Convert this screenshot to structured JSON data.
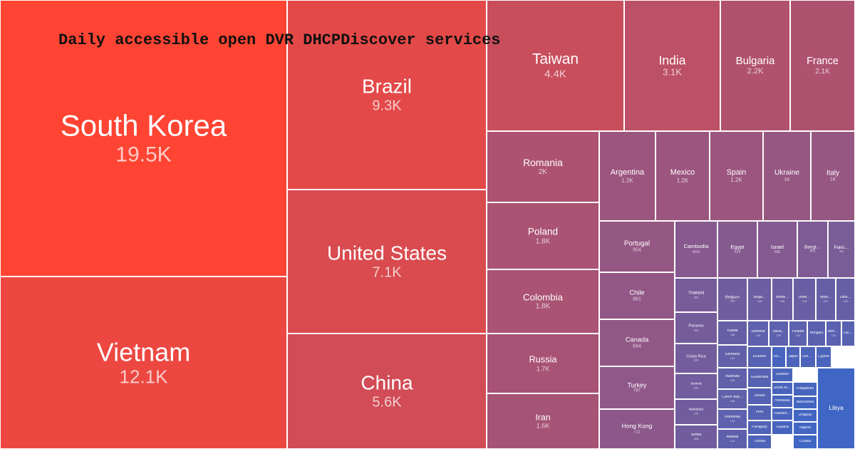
{
  "chart_data": {
    "type": "treemap",
    "title": "Daily accessible open DVR DHCPDiscover services",
    "color_scale": {
      "high": "#ff4433",
      "low": "#3f66c4"
    },
    "items": [
      {
        "name": "South Korea",
        "label": "19.5K",
        "value": 19500
      },
      {
        "name": "Vietnam",
        "label": "12.1K",
        "value": 12100
      },
      {
        "name": "Brazil",
        "label": "9.3K",
        "value": 9300
      },
      {
        "name": "United States",
        "label": "7.1K",
        "value": 7100
      },
      {
        "name": "China",
        "label": "5.6K",
        "value": 5600
      },
      {
        "name": "Taiwan",
        "label": "4.4K",
        "value": 4400
      },
      {
        "name": "India",
        "label": "3.1K",
        "value": 3100
      },
      {
        "name": "Bulgaria",
        "label": "2.2K",
        "value": 2200
      },
      {
        "name": "France",
        "label": "2.1K",
        "value": 2100
      },
      {
        "name": "Romania",
        "label": "2K",
        "value": 2000
      },
      {
        "name": "Poland",
        "label": "1.8K",
        "value": 1800
      },
      {
        "name": "Colombia",
        "label": "1.8K",
        "value": 1800
      },
      {
        "name": "Russia",
        "label": "1.7K",
        "value": 1700
      },
      {
        "name": "Iran",
        "label": "1.6K",
        "value": 1600
      },
      {
        "name": "Argentina",
        "label": "1.2K",
        "value": 1200
      },
      {
        "name": "Mexico",
        "label": "1.2K",
        "value": 1200
      },
      {
        "name": "Spain",
        "label": "1.2K",
        "value": 1200
      },
      {
        "name": "Ukraine",
        "label": "1K",
        "value": 1000
      },
      {
        "name": "Italy",
        "label": "1K",
        "value": 1000
      },
      {
        "name": "Portugal",
        "label": "954",
        "value": 954
      },
      {
        "name": "Chile",
        "label": "861",
        "value": 861
      },
      {
        "name": "Canada",
        "label": "844",
        "value": 844
      },
      {
        "name": "Turkey",
        "label": "787",
        "value": 787
      },
      {
        "name": "Hong Kong",
        "label": "721",
        "value": 721
      },
      {
        "name": "Cambodia",
        "label": "603",
        "value": 603
      },
      {
        "name": "Egypt",
        "label": "578",
        "value": 578
      },
      {
        "name": "Israel",
        "label": "555",
        "value": 555
      },
      {
        "name": "Bangl…",
        "label": "451",
        "value": 451
      },
      {
        "name": "Pakis…",
        "label": "392",
        "value": 392
      },
      {
        "name": "Thailand",
        "label": "363",
        "value": 363
      },
      {
        "name": "Panama",
        "label": "328",
        "value": 328
      },
      {
        "name": "Costa Rica",
        "label": "324",
        "value": 324
      },
      {
        "name": "Bolivia",
        "label": "293",
        "value": 293
      },
      {
        "name": "Malaysia",
        "label": "290",
        "value": 290
      },
      {
        "name": "Serbia",
        "label": "283",
        "value": 283
      },
      {
        "name": "Belgium",
        "label": "280",
        "value": 280
      },
      {
        "name": "Singa…",
        "label": "240",
        "value": 240
      },
      {
        "name": "Nethe…",
        "label": "236",
        "value": 236
      },
      {
        "name": "Unite…",
        "label": "218",
        "value": 218
      },
      {
        "name": "Mold…",
        "label": "201",
        "value": 201
      },
      {
        "name": "Lithu…",
        "label": "196",
        "value": 196
      },
      {
        "name": "Kuwait",
        "label": "196",
        "value": 196
      },
      {
        "name": "Germany",
        "label": "169",
        "value": 169
      },
      {
        "name": "Australia",
        "label": "159",
        "value": 159
      },
      {
        "name": "Czech Rep…",
        "label": "158",
        "value": 158
      },
      {
        "name": "Indonesia",
        "label": "133",
        "value": 133
      },
      {
        "name": "Albania",
        "label": "144",
        "value": 144
      },
      {
        "name": "Slovenia",
        "label": "140",
        "value": 140
      },
      {
        "name": "Slova…",
        "label": "133",
        "value": 133
      },
      {
        "name": "Finland",
        "label": "133",
        "value": 133
      },
      {
        "name": "Hungary",
        "label": "",
        "value": 120
      },
      {
        "name": "Arme…",
        "label": "118",
        "value": 118
      },
      {
        "name": "Latvia",
        "label": "",
        "value": 110
      },
      {
        "name": "Ecuador",
        "label": "",
        "value": 106
      },
      {
        "name": "Guatemala",
        "label": "",
        "value": 105
      },
      {
        "name": "Jordan",
        "label": "",
        "value": 95
      },
      {
        "name": "Peru",
        "label": "",
        "value": 92
      },
      {
        "name": "Paraguay",
        "label": "",
        "value": 80
      },
      {
        "name": "Tunisia",
        "label": "",
        "value": 75
      },
      {
        "name": "Japan",
        "label": "",
        "value": 70
      },
      {
        "name": "Greece",
        "label": "",
        "value": 68
      },
      {
        "name": "Cyprus",
        "label": "",
        "value": 62
      },
      {
        "name": "Sweden",
        "label": "",
        "value": 60
      },
      {
        "name": "South Af…",
        "label": "",
        "value": 58
      },
      {
        "name": "Honduras",
        "label": "",
        "value": 56
      },
      {
        "name": "Palestin…",
        "label": "",
        "value": 54
      },
      {
        "name": "Guyana",
        "label": "",
        "value": 52
      },
      {
        "name": "Philippines",
        "label": "",
        "value": 50
      },
      {
        "name": "Réunion",
        "label": "",
        "value": 49
      },
      {
        "name": "Macedonia",
        "label": "",
        "value": 40
      },
      {
        "name": "Uruguay",
        "label": "",
        "value": 36
      },
      {
        "name": "Nigeria",
        "label": "",
        "value": 34
      },
      {
        "name": "Croatia",
        "label": "",
        "value": 30
      },
      {
        "name": "Libya",
        "label": "",
        "value": 28
      }
    ]
  }
}
